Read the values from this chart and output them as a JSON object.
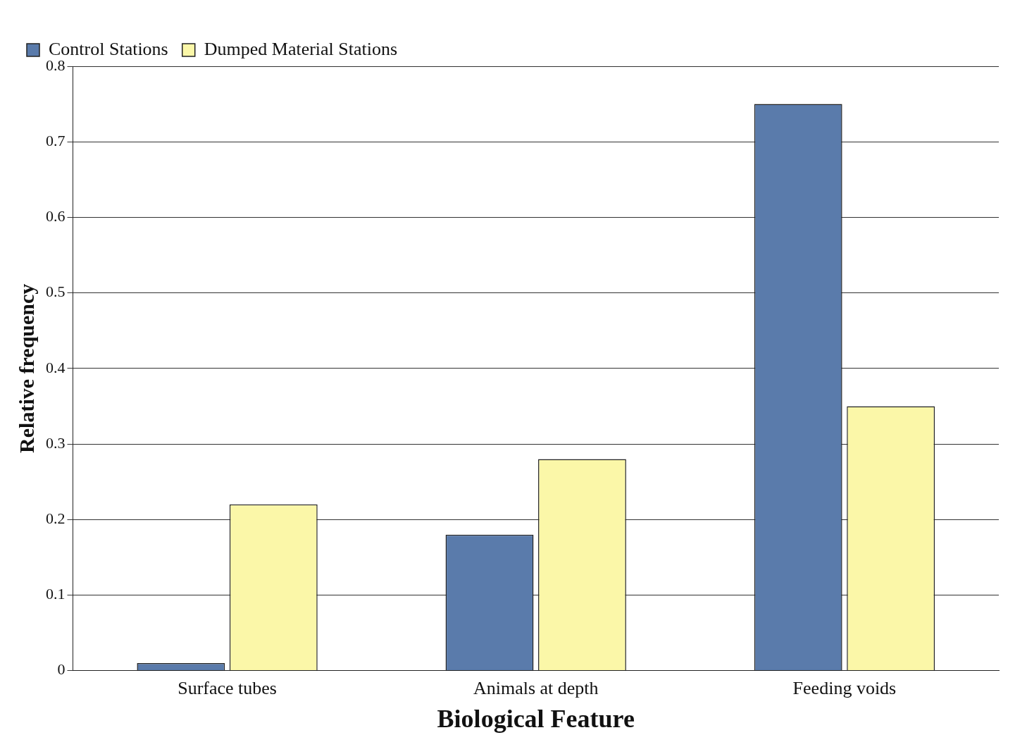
{
  "chart_data": {
    "type": "bar",
    "xlabel": "Biological Feature",
    "ylabel": "Relative frequency",
    "categories": [
      "Surface tubes",
      "Animals at depth",
      "Feeding voids"
    ],
    "series": [
      {
        "name": "Control Stations",
        "color": "#5a7bab",
        "values": [
          0.01,
          0.18,
          0.75
        ]
      },
      {
        "name": "Dumped Material Stations",
        "color": "#fbf7a8",
        "values": [
          0.22,
          0.28,
          0.35
        ]
      }
    ],
    "ylim": [
      0,
      0.8
    ],
    "yticks": [
      0,
      0.1,
      0.2,
      0.3,
      0.4,
      0.5,
      0.6,
      0.7,
      0.8
    ],
    "grid": "y",
    "legend": "top left"
  }
}
